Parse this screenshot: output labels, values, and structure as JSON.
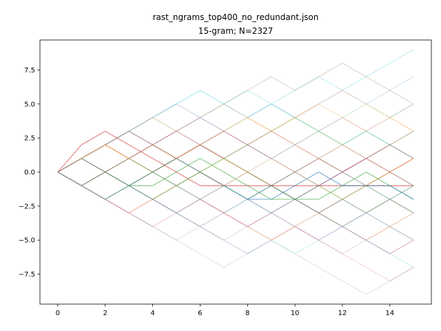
{
  "chart_data": {
    "type": "line",
    "title": "rast_ngrams_top400_no_redundant.json",
    "subtitle": "15-gram; N=2327",
    "xlabel": "",
    "ylabel": "",
    "xlim": [
      -0.75,
      15.75
    ],
    "ylim": [
      -9.7,
      9.7
    ],
    "xticks": [
      0,
      2,
      4,
      6,
      8,
      10,
      12,
      14
    ],
    "xtick_labels": [
      "0",
      "2",
      "4",
      "6",
      "8",
      "10",
      "12",
      "14"
    ],
    "yticks": [
      -7.5,
      -5.0,
      -2.5,
      0.0,
      2.5,
      5.0,
      7.5
    ],
    "ytick_labels": [
      "−7.5",
      "−5.0",
      "−2.5",
      "0.0",
      "2.5",
      "5.0",
      "7.5"
    ],
    "grid": false,
    "legend": "none",
    "x": [
      0,
      1,
      2,
      3,
      4,
      5,
      6,
      7,
      8,
      9,
      10,
      11,
      12,
      13,
      14,
      15
    ],
    "series": [
      {
        "color": "#d62728",
        "alpha": 0.75,
        "values": [
          0,
          2,
          3,
          2,
          1,
          0,
          -1,
          -1,
          -1,
          -1,
          -1,
          -1,
          -1,
          -1,
          -1,
          -1
        ]
      },
      {
        "color": "#ff7f0e",
        "alpha": 0.7,
        "values": [
          0,
          1,
          2,
          1,
          0,
          1,
          2,
          1,
          0,
          -1,
          -2,
          -3,
          -2,
          -1,
          0,
          1
        ]
      },
      {
        "color": "#2ca02c",
        "alpha": 0.7,
        "values": [
          0,
          -1,
          0,
          -1,
          -1,
          0,
          1,
          0,
          -1,
          -2,
          -2,
          -2,
          -1,
          0,
          -1,
          -2
        ]
      },
      {
        "color": "#1f77b4",
        "alpha": 0.75,
        "values": [
          0,
          1,
          0,
          -1,
          0,
          1,
          0,
          -1,
          -2,
          -2,
          -1,
          0,
          -1,
          -1,
          -1,
          -2
        ]
      },
      {
        "color": "#8c564b",
        "alpha": 0.6,
        "values": [
          0,
          -1,
          -2,
          -1,
          0,
          1,
          2,
          1,
          0,
          -1,
          -2,
          -1,
          0,
          1,
          2,
          1
        ]
      },
      {
        "color": "#9467bd",
        "alpha": 0.5,
        "values": [
          0,
          -1,
          0,
          1,
          2,
          1,
          0,
          -1,
          -2,
          -3,
          -2,
          -1,
          0,
          1,
          0,
          -1
        ]
      },
      {
        "color": "#7f7f7f",
        "alpha": 0.6,
        "values": [
          0,
          1,
          2,
          3,
          2,
          1,
          0,
          -1,
          -2,
          -1,
          -2,
          -3,
          -4,
          -3,
          -2,
          -3
        ]
      },
      {
        "color": "#bcbd22",
        "alpha": 0.6,
        "values": [
          0,
          1,
          0,
          -1,
          -2,
          -1,
          0,
          1,
          0,
          -1,
          0,
          1,
          2,
          1,
          0,
          -1
        ]
      },
      {
        "color": "#17becf",
        "alpha": 0.45,
        "values": [
          0,
          1,
          2,
          3,
          4,
          5,
          6,
          5,
          4,
          5,
          4,
          3,
          2,
          3,
          2,
          1
        ]
      },
      {
        "color": "#e377c2",
        "alpha": 0.35,
        "values": [
          0,
          -1,
          -2,
          -3,
          -4,
          -3,
          -4,
          -5,
          -6,
          -5,
          -4,
          -5,
          -6,
          -7,
          -8,
          -7
        ]
      },
      {
        "color": "#8c564b",
        "alpha": 0.3,
        "values": [
          0,
          1,
          2,
          3,
          4,
          3,
          4,
          5,
          6,
          7,
          6,
          7,
          8,
          7,
          6,
          5
        ]
      },
      {
        "color": "#1f77b4",
        "alpha": 0.4,
        "values": [
          0,
          -1,
          0,
          1,
          0,
          -1,
          -2,
          -3,
          -2,
          -1,
          -2,
          -3,
          -2,
          -1,
          -2,
          -3
        ]
      },
      {
        "color": "#d62728",
        "alpha": 0.4,
        "values": [
          0,
          1,
          2,
          1,
          2,
          3,
          2,
          1,
          2,
          3,
          2,
          1,
          0,
          1,
          2,
          3
        ]
      },
      {
        "color": "#2ca02c",
        "alpha": 0.45,
        "values": [
          0,
          -1,
          -2,
          -1,
          -2,
          -1,
          0,
          -1,
          -2,
          -1,
          -2,
          -1,
          -2,
          -3,
          -2,
          -1
        ]
      },
      {
        "color": "#9467bd",
        "alpha": 0.3,
        "values": [
          0,
          1,
          0,
          1,
          2,
          3,
          4,
          3,
          2,
          1,
          2,
          3,
          4,
          3,
          4,
          5
        ]
      },
      {
        "color": "#ff7f0e",
        "alpha": 0.35,
        "values": [
          0,
          -1,
          -2,
          -3,
          -2,
          -3,
          -2,
          -3,
          -4,
          -5,
          -4,
          -3,
          -4,
          -5,
          -4,
          -3
        ]
      },
      {
        "color": "#7f7f7f",
        "alpha": 0.25,
        "values": [
          0,
          -1,
          -2,
          -3,
          -4,
          -5,
          -6,
          -7,
          -6,
          -5,
          -6,
          -7,
          -8,
          -9,
          -8,
          -7
        ]
      },
      {
        "color": "#17becf",
        "alpha": 0.3,
        "values": [
          0,
          1,
          2,
          3,
          4,
          5,
          4,
          5,
          6,
          5,
          6,
          7,
          6,
          7,
          8,
          9
        ]
      },
      {
        "color": "#bcbd22",
        "alpha": 0.35,
        "values": [
          0,
          -1,
          0,
          1,
          2,
          1,
          2,
          3,
          2,
          3,
          2,
          1,
          0,
          -1,
          0,
          1
        ]
      },
      {
        "color": "#e377c2",
        "alpha": 0.3,
        "values": [
          0,
          1,
          0,
          -1,
          -2,
          -3,
          -2,
          -3,
          -4,
          -3,
          -4,
          -5,
          -4,
          -3,
          -4,
          -5
        ]
      },
      {
        "color": "#1f77b4",
        "alpha": 0.25,
        "values": [
          0,
          1,
          2,
          3,
          2,
          3,
          4,
          3,
          4,
          5,
          4,
          5,
          6,
          5,
          6,
          7
        ]
      },
      {
        "color": "#d62728",
        "alpha": 0.3,
        "values": [
          0,
          -1,
          -2,
          -3,
          -2,
          -1,
          -2,
          -3,
          -4,
          -3,
          -2,
          -3,
          -4,
          -5,
          -6,
          -5
        ]
      },
      {
        "color": "#2ca02c",
        "alpha": 0.3,
        "values": [
          0,
          1,
          0,
          1,
          0,
          1,
          0,
          1,
          2,
          1,
          2,
          3,
          2,
          3,
          2,
          3
        ]
      },
      {
        "color": "#8c564b",
        "alpha": 0.35,
        "values": [
          0,
          -1,
          0,
          -1,
          0,
          -1,
          0,
          -1,
          0,
          -1,
          0,
          -1,
          0,
          -1,
          0,
          -1
        ]
      },
      {
        "color": "#9467bd",
        "alpha": 0.3,
        "values": [
          0,
          -1,
          -2,
          -1,
          -2,
          -3,
          -4,
          -3,
          -4,
          -3,
          -4,
          -5,
          -4,
          -5,
          -6,
          -5
        ]
      },
      {
        "color": "#ff7f0e",
        "alpha": 0.3,
        "values": [
          0,
          1,
          2,
          1,
          2,
          1,
          2,
          3,
          4,
          3,
          4,
          5,
          4,
          3,
          4,
          3
        ]
      },
      {
        "color": "#7f7f7f",
        "alpha": 0.3,
        "values": [
          0,
          1,
          0,
          1,
          2,
          1,
          2,
          1,
          0,
          -1,
          0,
          -1,
          -2,
          -3,
          -2,
          -3
        ]
      },
      {
        "color": "#17becf",
        "alpha": 0.3,
        "values": [
          0,
          -1,
          -2,
          -1,
          0,
          -1,
          -2,
          -1,
          -2,
          -3,
          -2,
          -3,
          -4,
          -3,
          -4,
          -5
        ]
      },
      {
        "color": "#bcbd22",
        "alpha": 0.25,
        "values": [
          0,
          1,
          2,
          3,
          4,
          3,
          2,
          3,
          4,
          3,
          4,
          3,
          2,
          1,
          2,
          1
        ]
      },
      {
        "color": "#e377c2",
        "alpha": 0.25,
        "values": [
          0,
          -1,
          -2,
          -3,
          -4,
          -3,
          -2,
          -1,
          0,
          1,
          0,
          1,
          2,
          1,
          0,
          1
        ]
      },
      {
        "color": "#1f77b4",
        "alpha": 0.3,
        "values": [
          0,
          -1,
          0,
          -1,
          -2,
          -3,
          -2,
          -1,
          -2,
          -1,
          0,
          1,
          0,
          -1,
          -2,
          -1
        ]
      },
      {
        "color": "#d62728",
        "alpha": 0.3,
        "values": [
          0,
          1,
          2,
          3,
          2,
          1,
          2,
          3,
          2,
          1,
          0,
          1,
          0,
          1,
          0,
          1
        ]
      },
      {
        "color": "#2ca02c",
        "alpha": 0.25,
        "values": [
          0,
          1,
          0,
          -1,
          0,
          -1,
          0,
          1,
          2,
          3,
          4,
          3,
          4,
          5,
          4,
          5
        ]
      },
      {
        "color": "#8c564b",
        "alpha": 0.25,
        "values": [
          0,
          -1,
          -2,
          -1,
          -2,
          -3,
          -4,
          -5,
          -4,
          -5,
          -4,
          -5,
          -6,
          -5,
          -4,
          -5
        ]
      },
      {
        "color": "#9467bd",
        "alpha": 0.3,
        "values": [
          0,
          1,
          0,
          1,
          2,
          3,
          2,
          3,
          2,
          1,
          0,
          -1,
          0,
          1,
          2,
          1
        ]
      },
      {
        "color": "#ff7f0e",
        "alpha": 0.25,
        "values": [
          0,
          -1,
          0,
          1,
          2,
          3,
          4,
          5,
          4,
          3,
          4,
          5,
          6,
          5,
          4,
          3
        ]
      },
      {
        "color": "#7f7f7f",
        "alpha": 0.25,
        "values": [
          0,
          -1,
          -2,
          -3,
          -4,
          -5,
          -4,
          -3,
          -2,
          -3,
          -4,
          -3,
          -2,
          -3,
          -4,
          -3
        ]
      },
      {
        "color": "#17becf",
        "alpha": 0.25,
        "values": [
          0,
          -1,
          -2,
          -1,
          -2,
          -3,
          -4,
          -5,
          -6,
          -5,
          -6,
          -5,
          -4,
          -5,
          -6,
          -7
        ]
      },
      {
        "color": "#bcbd22",
        "alpha": 0.3,
        "values": [
          0,
          1,
          2,
          1,
          0,
          -1,
          -2,
          -1,
          0,
          1,
          0,
          -1,
          -2,
          -1,
          -2,
          -3
        ]
      },
      {
        "color": "#e377c2",
        "alpha": 0.25,
        "values": [
          0,
          1,
          2,
          3,
          4,
          5,
          4,
          3,
          2,
          3,
          2,
          1,
          2,
          1,
          0,
          -1
        ]
      }
    ]
  }
}
